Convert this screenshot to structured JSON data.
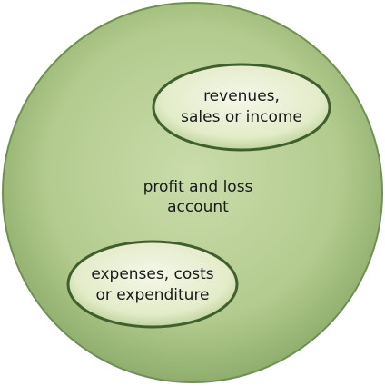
{
  "center": {
    "lines": [
      "profit and loss",
      "account"
    ]
  },
  "nodes": [
    {
      "lines": [
        "revenues,",
        "sales or income"
      ]
    },
    {
      "lines": [
        "expenses, costs",
        "or expenditure"
      ]
    }
  ]
}
